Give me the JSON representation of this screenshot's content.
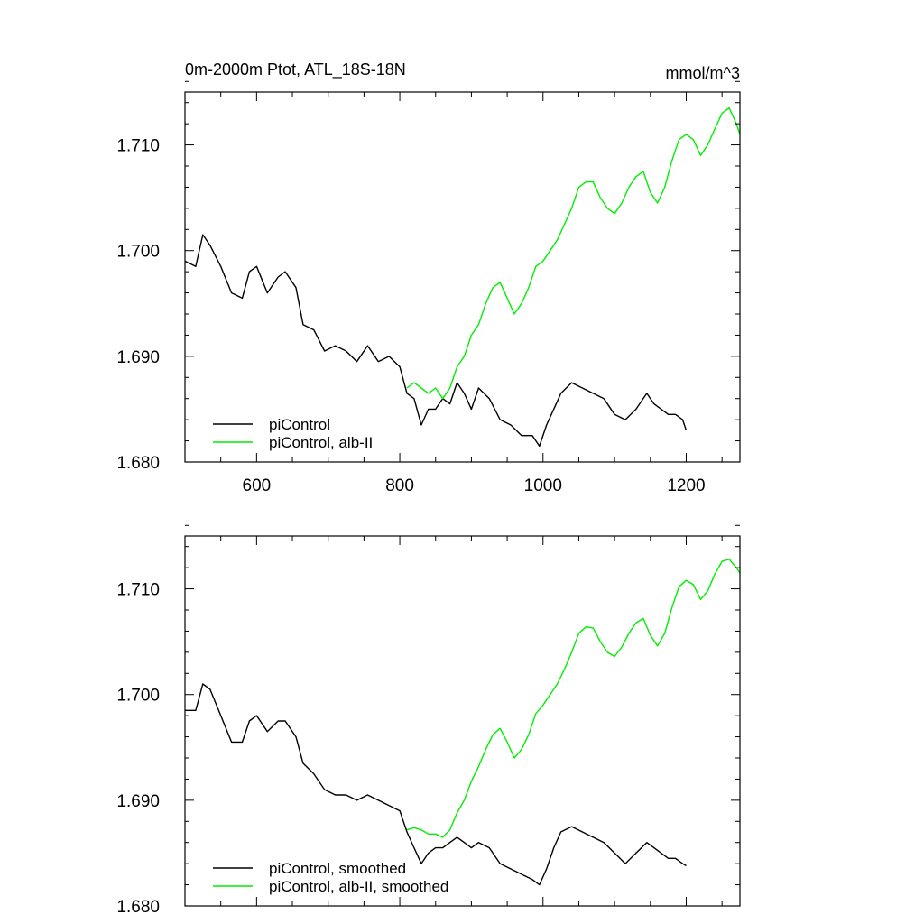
{
  "header": {
    "title": "0m-2000m Ptot, ATL_18S-18N",
    "units": "mmol/m^3"
  },
  "colors": {
    "picontrol": "#000000",
    "alb": "#00ee00"
  },
  "chart_data": [
    {
      "type": "line",
      "title": "0m-2000m Ptot, ATL_18S-18N",
      "units": "mmol/m^3",
      "xlim": [
        500,
        1275
      ],
      "ylim": [
        1.68,
        1.715
      ],
      "x_ticks": [
        600,
        800,
        1000,
        1200
      ],
      "x_tick_labels": [
        "600",
        "800",
        "1000",
        "1200"
      ],
      "y_ticks": [
        1.68,
        1.69,
        1.7,
        1.71
      ],
      "y_tick_labels": [
        "1.680",
        "1.690",
        "1.700",
        "1.710"
      ],
      "legend_position": "bottom-left",
      "series": [
        {
          "name": "piControl",
          "color": "#000000",
          "x": [
            500,
            515,
            525,
            535,
            550,
            565,
            580,
            590,
            600,
            615,
            630,
            640,
            655,
            665,
            680,
            695,
            710,
            725,
            740,
            755,
            770,
            785,
            800,
            810,
            820,
            830,
            840,
            850,
            860,
            870,
            880,
            890,
            900,
            910,
            925,
            940,
            955,
            970,
            985,
            995,
            1005,
            1015,
            1025,
            1040,
            1055,
            1070,
            1085,
            1100,
            1115,
            1130,
            1145,
            1155,
            1165,
            1175,
            1185,
            1195,
            1200
          ],
          "y": [
            1.699,
            1.6985,
            1.7015,
            1.7005,
            1.6985,
            1.696,
            1.6955,
            1.698,
            1.6985,
            1.696,
            1.6975,
            1.698,
            1.6965,
            1.693,
            1.6925,
            1.6905,
            1.691,
            1.6905,
            1.6895,
            1.691,
            1.6895,
            1.69,
            1.689,
            1.6865,
            1.686,
            1.6835,
            1.685,
            1.685,
            1.686,
            1.6855,
            1.6875,
            1.6865,
            1.685,
            1.687,
            1.686,
            1.684,
            1.6835,
            1.6825,
            1.6825,
            1.6815,
            1.6835,
            1.685,
            1.6865,
            1.6875,
            1.687,
            1.6865,
            1.686,
            1.6845,
            1.684,
            1.685,
            1.6865,
            1.6855,
            1.685,
            1.6845,
            1.6845,
            1.684,
            1.683
          ]
        },
        {
          "name": "piControl, alb-II",
          "color": "#00ee00",
          "x": [
            810,
            820,
            830,
            840,
            850,
            860,
            870,
            880,
            890,
            900,
            910,
            920,
            930,
            940,
            950,
            960,
            970,
            980,
            990,
            1000,
            1010,
            1020,
            1030,
            1040,
            1050,
            1060,
            1070,
            1080,
            1090,
            1100,
            1110,
            1120,
            1130,
            1140,
            1150,
            1160,
            1170,
            1180,
            1190,
            1200,
            1210,
            1220,
            1230,
            1240,
            1250,
            1260,
            1270,
            1275
          ],
          "y": [
            1.687,
            1.6875,
            1.687,
            1.6865,
            1.687,
            1.686,
            1.687,
            1.689,
            1.69,
            1.692,
            1.693,
            1.695,
            1.6965,
            1.697,
            1.6955,
            1.694,
            1.695,
            1.6965,
            1.6985,
            1.699,
            1.7,
            1.701,
            1.7025,
            1.704,
            1.706,
            1.7065,
            1.7065,
            1.705,
            1.704,
            1.7035,
            1.7045,
            1.706,
            1.707,
            1.7075,
            1.7055,
            1.7045,
            1.706,
            1.7085,
            1.7105,
            1.711,
            1.7105,
            1.709,
            1.71,
            1.7115,
            1.713,
            1.7135,
            1.712,
            1.711
          ]
        }
      ]
    },
    {
      "type": "line",
      "xlim": [
        500,
        1275
      ],
      "ylim": [
        1.68,
        1.715
      ],
      "x_ticks": [
        600,
        800,
        1000,
        1200
      ],
      "y_ticks": [
        1.68,
        1.69,
        1.7,
        1.71
      ],
      "y_tick_labels": [
        "1.680",
        "1.690",
        "1.700",
        "1.710"
      ],
      "legend_position": "bottom-left",
      "series": [
        {
          "name": "piControl, smoothed",
          "color": "#000000",
          "x": [
            500,
            515,
            525,
            535,
            550,
            565,
            580,
            590,
            600,
            615,
            630,
            640,
            655,
            665,
            680,
            695,
            710,
            725,
            740,
            755,
            770,
            785,
            800,
            810,
            820,
            830,
            840,
            850,
            860,
            870,
            880,
            890,
            900,
            910,
            925,
            940,
            955,
            970,
            985,
            995,
            1005,
            1015,
            1025,
            1040,
            1055,
            1070,
            1085,
            1100,
            1115,
            1130,
            1145,
            1155,
            1165,
            1175,
            1185,
            1195,
            1200
          ],
          "y": [
            1.6985,
            1.6985,
            1.701,
            1.7005,
            1.698,
            1.6955,
            1.6955,
            1.6975,
            1.698,
            1.6965,
            1.6975,
            1.6975,
            1.696,
            1.6935,
            1.6925,
            1.691,
            1.6905,
            1.6905,
            1.69,
            1.6905,
            1.69,
            1.6895,
            1.689,
            1.687,
            1.6855,
            1.684,
            1.685,
            1.6855,
            1.6855,
            1.686,
            1.6865,
            1.686,
            1.6855,
            1.686,
            1.6855,
            1.684,
            1.6835,
            1.683,
            1.6825,
            1.682,
            1.6835,
            1.6855,
            1.687,
            1.6875,
            1.687,
            1.6865,
            1.686,
            1.685,
            1.684,
            1.685,
            1.686,
            1.6855,
            1.685,
            1.6845,
            1.6845,
            1.684,
            1.6838
          ]
        },
        {
          "name": "piControl, alb-II, smoothed",
          "color": "#00ee00",
          "x": [
            810,
            820,
            830,
            840,
            850,
            860,
            870,
            880,
            890,
            900,
            910,
            920,
            930,
            940,
            950,
            960,
            970,
            980,
            990,
            1000,
            1010,
            1020,
            1030,
            1040,
            1050,
            1060,
            1070,
            1080,
            1090,
            1100,
            1110,
            1120,
            1130,
            1140,
            1150,
            1160,
            1170,
            1180,
            1190,
            1200,
            1210,
            1220,
            1230,
            1240,
            1250,
            1260,
            1270,
            1275
          ],
          "y": [
            1.6872,
            1.6874,
            1.6872,
            1.6868,
            1.6868,
            1.6865,
            1.6872,
            1.6888,
            1.69,
            1.6918,
            1.6932,
            1.6948,
            1.6962,
            1.6968,
            1.6955,
            1.694,
            1.6948,
            1.6962,
            1.6982,
            1.699,
            1.7,
            1.701,
            1.7024,
            1.704,
            1.7058,
            1.7064,
            1.7063,
            1.705,
            1.704,
            1.7036,
            1.7045,
            1.7058,
            1.7068,
            1.7072,
            1.7056,
            1.7046,
            1.7058,
            1.7082,
            1.7102,
            1.7108,
            1.7104,
            1.709,
            1.7098,
            1.7114,
            1.7126,
            1.7128,
            1.712,
            1.7115
          ]
        }
      ]
    }
  ]
}
